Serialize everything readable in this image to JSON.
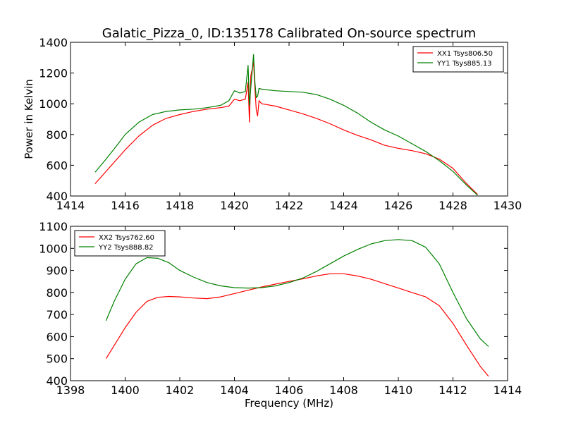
{
  "chart_data": [
    {
      "type": "line",
      "title": "Galatic_Pizza_0, ID:135178 Calibrated On-source spectrum",
      "xlabel": "",
      "ylabel": "Power in Kelvin",
      "xlim": [
        1414,
        1430
      ],
      "ylim": [
        400,
        1400
      ],
      "xticks": [
        1414,
        1416,
        1418,
        1420,
        1422,
        1424,
        1426,
        1428,
        1430
      ],
      "yticks": [
        400,
        600,
        800,
        1000,
        1200,
        1400
      ],
      "grid": false,
      "legend": "top-right",
      "series": [
        {
          "name": "XX1 Tsys806.50",
          "color": "#ff0000",
          "x": [
            1414.9,
            1415.3,
            1415.7,
            1416.0,
            1416.5,
            1417.0,
            1417.5,
            1418.0,
            1418.5,
            1419.0,
            1419.5,
            1419.8,
            1420.0,
            1420.2,
            1420.4,
            1420.5,
            1420.55,
            1420.6,
            1420.7,
            1420.75,
            1420.8,
            1420.85,
            1420.9,
            1421.0,
            1421.5,
            1422.0,
            1422.5,
            1423.0,
            1423.5,
            1424.0,
            1424.5,
            1425.0,
            1425.5,
            1426.0,
            1426.5,
            1427.0,
            1427.5,
            1428.0,
            1428.5,
            1428.9
          ],
          "values": [
            480,
            560,
            640,
            700,
            790,
            860,
            905,
            930,
            950,
            965,
            975,
            985,
            1030,
            1020,
            1030,
            1140,
            880,
            1180,
            1270,
            1100,
            960,
            920,
            1020,
            1000,
            985,
            960,
            935,
            905,
            870,
            830,
            795,
            765,
            730,
            710,
            695,
            675,
            640,
            580,
            480,
            410
          ]
        },
        {
          "name": "YY1 Tsys885.13",
          "color": "#008000",
          "x": [
            1414.9,
            1415.3,
            1415.7,
            1416.0,
            1416.5,
            1417.0,
            1417.5,
            1418.0,
            1418.5,
            1419.0,
            1419.5,
            1419.8,
            1420.0,
            1420.2,
            1420.4,
            1420.5,
            1420.55,
            1420.6,
            1420.7,
            1420.75,
            1420.8,
            1420.85,
            1420.9,
            1421.0,
            1421.5,
            1422.0,
            1422.5,
            1423.0,
            1423.5,
            1424.0,
            1424.5,
            1425.0,
            1425.5,
            1426.0,
            1426.5,
            1427.0,
            1427.5,
            1428.0,
            1428.5,
            1428.9
          ],
          "values": [
            555,
            640,
            730,
            800,
            880,
            930,
            950,
            960,
            965,
            975,
            990,
            1020,
            1085,
            1070,
            1080,
            1250,
            990,
            1100,
            1320,
            1140,
            1040,
            1050,
            1100,
            1095,
            1085,
            1080,
            1075,
            1060,
            1030,
            990,
            940,
            880,
            830,
            790,
            740,
            690,
            630,
            560,
            470,
            405
          ]
        }
      ]
    },
    {
      "type": "line",
      "title": "",
      "xlabel": "Frequency (MHz)",
      "ylabel": "",
      "xlim": [
        1398,
        1414
      ],
      "ylim": [
        400,
        1100
      ],
      "xticks": [
        1398,
        1400,
        1402,
        1404,
        1406,
        1408,
        1410,
        1412,
        1414
      ],
      "yticks": [
        400,
        500,
        600,
        700,
        800,
        900,
        1000,
        1100
      ],
      "grid": false,
      "legend": "top-left",
      "series": [
        {
          "name": "XX2 Tsys762.60",
          "color": "#ff0000",
          "x": [
            1399.3,
            1399.6,
            1400.0,
            1400.4,
            1400.8,
            1401.2,
            1401.6,
            1402.0,
            1402.5,
            1403.0,
            1403.5,
            1404.0,
            1404.5,
            1405.0,
            1405.5,
            1406.0,
            1406.5,
            1407.0,
            1407.5,
            1408.0,
            1408.5,
            1409.0,
            1409.5,
            1410.0,
            1410.5,
            1411.0,
            1411.5,
            1412.0,
            1412.5,
            1413.0,
            1413.3
          ],
          "values": [
            500,
            560,
            640,
            710,
            760,
            778,
            782,
            780,
            775,
            772,
            780,
            795,
            810,
            825,
            838,
            850,
            862,
            875,
            885,
            885,
            875,
            860,
            840,
            820,
            800,
            780,
            740,
            660,
            560,
            465,
            420
          ]
        },
        {
          "name": "YY2 Tsys888.82",
          "color": "#008000",
          "x": [
            1399.3,
            1399.6,
            1400.0,
            1400.4,
            1400.8,
            1401.2,
            1401.6,
            1402.0,
            1402.5,
            1403.0,
            1403.5,
            1404.0,
            1404.5,
            1405.0,
            1405.5,
            1406.0,
            1406.5,
            1407.0,
            1407.5,
            1408.0,
            1408.5,
            1409.0,
            1409.5,
            1410.0,
            1410.5,
            1411.0,
            1411.5,
            1412.0,
            1412.5,
            1413.0,
            1413.3
          ],
          "values": [
            672,
            760,
            860,
            930,
            958,
            955,
            935,
            900,
            870,
            845,
            830,
            822,
            820,
            822,
            830,
            845,
            865,
            895,
            930,
            965,
            995,
            1020,
            1035,
            1040,
            1035,
            1005,
            930,
            800,
            680,
            590,
            555
          ]
        }
      ]
    }
  ]
}
